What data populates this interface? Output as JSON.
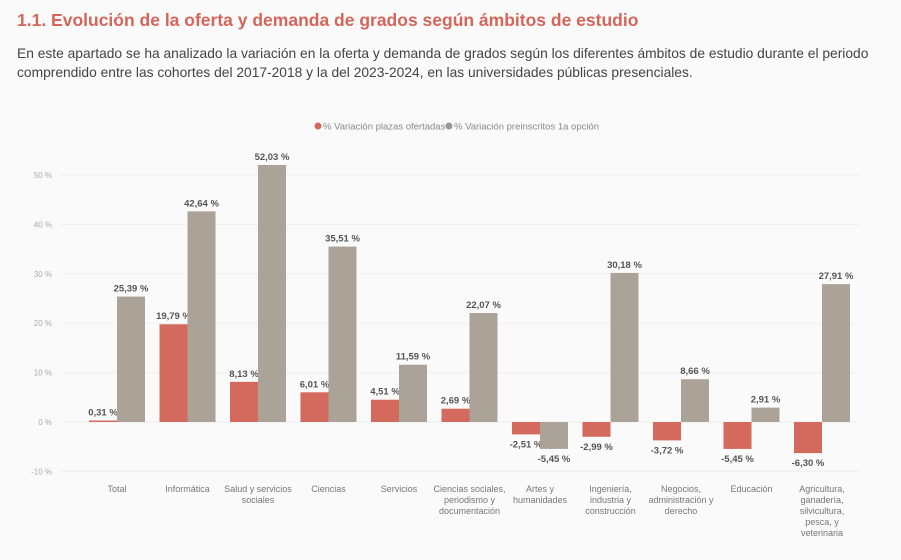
{
  "header": {
    "title": "1.1. Evolución de la oferta y demanda de grados según ámbitos de estudio",
    "intro": "En este apartado se ha analizado la variación en la oferta y demanda de grados según los diferentes ámbitos de estudio durante el periodo comprendido entre las cohortes del 2017-2018 y la del 2023-2024, en las universidades públicas presenciales."
  },
  "chart_data": {
    "type": "bar",
    "title": "",
    "ylim": [
      -10,
      52
    ],
    "yticks": [
      -10,
      0,
      10,
      20,
      30,
      40,
      50
    ],
    "ytick_labels": [
      "-10 %",
      "0 %",
      "10 %",
      "20 %",
      "30 %",
      "40 %",
      "50 %"
    ],
    "grid": true,
    "legend_placement": "top-center",
    "categories": [
      [
        "Total"
      ],
      [
        "Informática"
      ],
      [
        "Salud y servicios",
        "sociales"
      ],
      [
        "Ciencias"
      ],
      [
        "Servicios"
      ],
      [
        "Ciencias sociales,",
        "periodismo y",
        "documentación"
      ],
      [
        "Artes y",
        "humanidades"
      ],
      [
        "Ingeniería,",
        "industria y",
        "construcción"
      ],
      [
        "Negocios,",
        "administración y",
        "derecho"
      ],
      [
        "Educación"
      ],
      [
        "Agricultura,",
        "ganadería,",
        "silvicultura,",
        "pesca, y",
        "veterinaria"
      ]
    ],
    "series": [
      {
        "name": "% Variación plazas ofertadas",
        "color": "#d46a5e",
        "values": [
          0.31,
          19.79,
          8.13,
          6.01,
          4.51,
          2.69,
          -2.51,
          -2.99,
          -3.72,
          -5.45,
          -6.3
        ],
        "labels": [
          "0,31 %",
          "19,79 %",
          "8,13 %",
          "6,01 %",
          "4,51 %",
          "2,69 %",
          "-2,51 %",
          "-2,99 %",
          "-3,72 %",
          "-5,45 %",
          "-6,30 %"
        ]
      },
      {
        "name": "% Variación preinscritos 1a opción",
        "color": "#aba398",
        "values": [
          25.39,
          42.64,
          52.03,
          35.51,
          11.59,
          22.07,
          -5.45,
          30.18,
          8.66,
          2.91,
          27.91
        ],
        "labels": [
          "25,39 %",
          "42,64 %",
          "52,03 %",
          "35,51 %",
          "11,59 %",
          "22,07 %",
          "-5,45 %",
          "30,18 %",
          "8,66 %",
          "2,91 %",
          "27,91 %"
        ]
      }
    ]
  }
}
